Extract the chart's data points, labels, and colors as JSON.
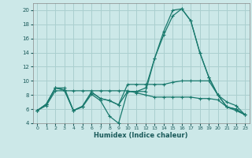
{
  "title": "",
  "xlabel": "Humidex (Indice chaleur)",
  "xlim": [
    -0.5,
    23.5
  ],
  "ylim": [
    4,
    21
  ],
  "yticks": [
    4,
    6,
    8,
    10,
    12,
    14,
    16,
    18,
    20
  ],
  "xticks": [
    0,
    1,
    2,
    3,
    4,
    5,
    6,
    7,
    8,
    9,
    10,
    11,
    12,
    13,
    14,
    15,
    16,
    17,
    18,
    19,
    20,
    21,
    22,
    23
  ],
  "bg_color": "#cce8e8",
  "grid_color": "#aacfcf",
  "line_color": "#1a7a6e",
  "lines": [
    [
      5.8,
      6.7,
      9.0,
      9.0,
      5.8,
      6.3,
      8.1,
      7.2,
      5.0,
      4.0,
      8.5,
      8.5,
      8.5,
      13.2,
      17.0,
      20.0,
      20.2,
      18.5,
      14.0,
      10.5,
      8.0,
      6.3,
      6.0,
      5.2
    ],
    [
      5.8,
      6.7,
      9.0,
      8.7,
      5.8,
      6.4,
      8.4,
      7.5,
      7.2,
      6.6,
      8.5,
      8.5,
      9.0,
      13.2,
      16.5,
      19.2,
      20.2,
      18.5,
      14.0,
      10.5,
      8.0,
      6.3,
      6.0,
      5.2
    ],
    [
      5.8,
      6.7,
      9.0,
      8.7,
      5.8,
      6.4,
      8.4,
      7.5,
      7.2,
      6.6,
      9.5,
      9.5,
      9.5,
      9.5,
      9.5,
      9.8,
      10.0,
      10.0,
      10.0,
      10.0,
      8.0,
      7.0,
      6.5,
      5.2
    ],
    [
      5.8,
      6.5,
      8.6,
      8.6,
      8.6,
      8.6,
      8.6,
      8.6,
      8.6,
      8.6,
      8.6,
      8.3,
      8.0,
      7.7,
      7.7,
      7.7,
      7.7,
      7.7,
      7.5,
      7.5,
      7.3,
      6.3,
      5.8,
      5.2
    ]
  ]
}
